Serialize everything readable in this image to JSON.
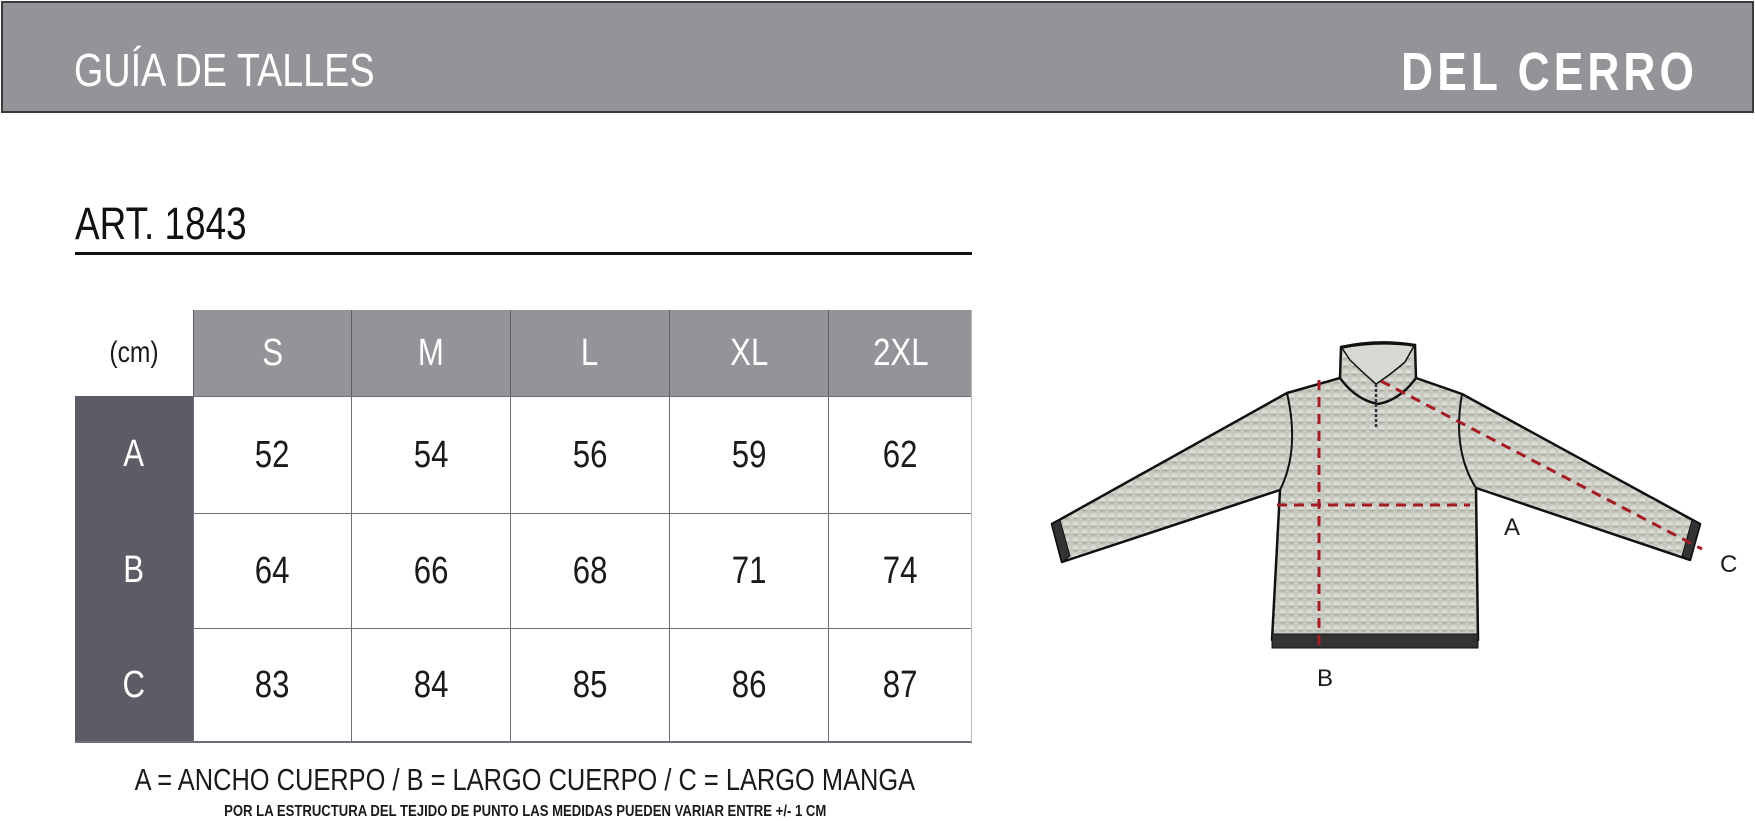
{
  "header": {
    "title": "GUÍA DE TALLES",
    "brand": "DEL CERRO"
  },
  "article": "ART. 1843",
  "table": {
    "unit_label": "(cm)",
    "sizes": [
      "S",
      "M",
      "L",
      "XL",
      "2XL"
    ],
    "rows": [
      {
        "label": "A",
        "values": [
          "52",
          "54",
          "56",
          "59",
          "62"
        ]
      },
      {
        "label": "B",
        "values": [
          "64",
          "66",
          "68",
          "71",
          "74"
        ]
      },
      {
        "label": "C",
        "values": [
          "83",
          "84",
          "85",
          "86",
          "87"
        ]
      }
    ]
  },
  "legend": "A = ANCHO CUERPO / B = LARGO CUERPO / C = LARGO MANGA",
  "note": "POR LA ESTRUCTURA DEL TEJIDO DE PUNTO  LAS MEDIDAS PUEDEN VARIAR ENTRE  +/- 1 CM",
  "diagram": {
    "labels": {
      "a": "A",
      "b": "B",
      "c": "C"
    },
    "garment_color": "#c8cac1",
    "measure_color": "#a51d24"
  },
  "colors": {
    "header_band": "#939398",
    "row_label_bg": "#5d5c66"
  }
}
